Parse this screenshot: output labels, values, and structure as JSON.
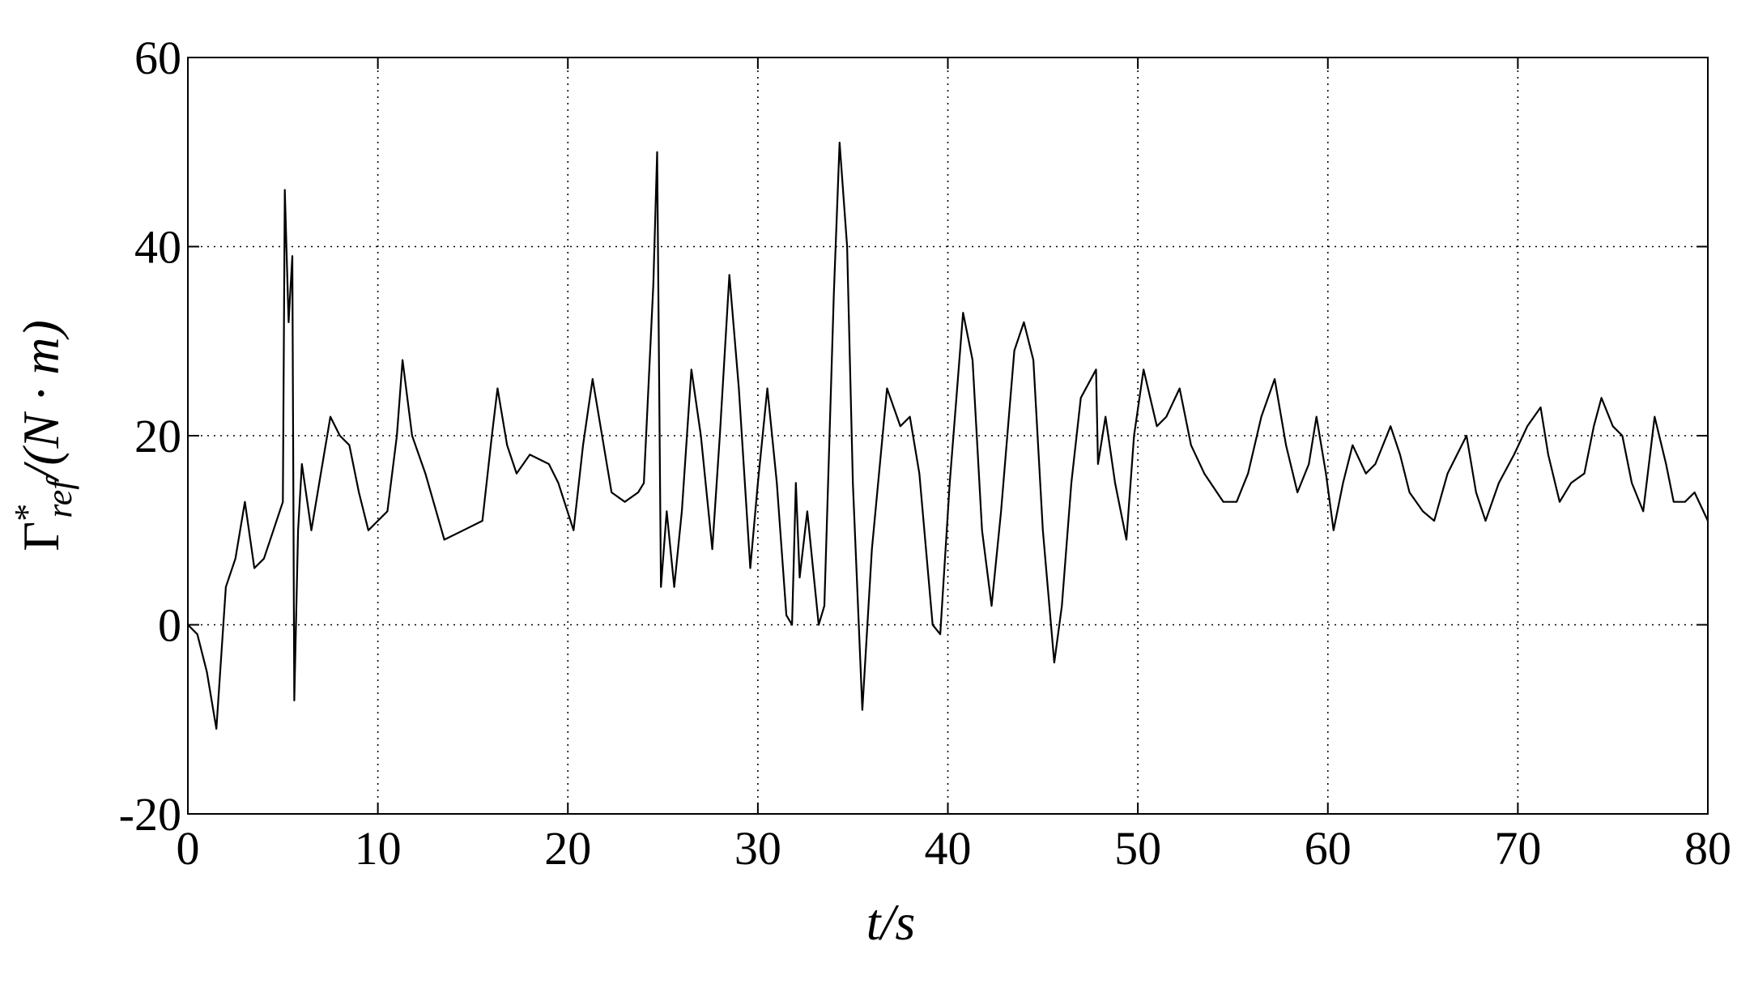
{
  "chart_data": {
    "type": "line",
    "x_label": "t/s",
    "y_label": {
      "symbol": "Γ",
      "sup": "*",
      "sub": "ref",
      "rest": "/(N · m)"
    },
    "color": "#000000",
    "grid": true,
    "xlim": [
      0,
      80
    ],
    "xticks": [
      0,
      10,
      20,
      30,
      40,
      50,
      60,
      70,
      80
    ],
    "ylim": [
      -20,
      60
    ],
    "yticks": [
      -20,
      0,
      20,
      40,
      60
    ],
    "x": [
      0,
      0.5,
      1,
      1.5,
      2,
      2.5,
      3,
      3.5,
      4,
      4.5,
      5,
      5.1,
      5.3,
      5.5,
      5.6,
      5.8,
      6,
      6.5,
      7,
      7.5,
      8,
      8.5,
      9,
      9.5,
      10,
      10.5,
      11,
      11.3,
      11.8,
      12.5,
      13.5,
      14.5,
      15.5,
      16,
      16.3,
      16.8,
      17.3,
      18,
      19,
      19.5,
      20.3,
      20.8,
      21.3,
      21.8,
      22.3,
      23,
      23.7,
      24,
      24.5,
      24.7,
      24.9,
      25.2,
      25.6,
      26,
      26.5,
      27,
      27.6,
      28,
      28.5,
      29,
      29.6,
      30,
      30.5,
      31,
      31.5,
      31.8,
      32,
      32.2,
      32.6,
      33.2,
      33.5,
      34,
      34.3,
      34.7,
      35,
      35.5,
      36,
      36.8,
      37.5,
      38,
      38.5,
      39.2,
      39.6,
      40.1,
      40.8,
      41.3,
      41.8,
      42.3,
      42.8,
      43.5,
      44,
      44.5,
      45,
      45.6,
      46,
      46.5,
      47,
      47.8,
      47.9,
      48.3,
      48.8,
      49.4,
      49.8,
      50.3,
      51,
      51.5,
      52.2,
      52.8,
      53.5,
      54.5,
      55.2,
      55.8,
      56.5,
      57.2,
      57.8,
      58.4,
      59,
      59.4,
      59.9,
      60.3,
      60.8,
      61.3,
      62,
      62.5,
      63.3,
      63.8,
      64.3,
      65,
      65.6,
      66.3,
      67.3,
      67.8,
      68.3,
      69,
      69.8,
      70.5,
      71.2,
      71.6,
      72.2,
      72.8,
      73.5,
      74,
      74.4,
      75,
      75.5,
      76,
      76.6,
      77.2,
      77.8,
      78.2,
      78.8,
      79.3,
      80
    ],
    "values": [
      0,
      -1,
      -5,
      -11,
      4,
      7,
      13,
      6,
      7,
      10,
      13,
      46,
      32,
      39,
      -8,
      10,
      17,
      10,
      16,
      22,
      20,
      19,
      14,
      10,
      11,
      12,
      20,
      28,
      20,
      16,
      9,
      10,
      11,
      20,
      25,
      19,
      16,
      18,
      17,
      15,
      10,
      19,
      26,
      20,
      14,
      13,
      14,
      15,
      36,
      50,
      4,
      12,
      4,
      12,
      27,
      20,
      8,
      20,
      37,
      25,
      6,
      15,
      25,
      15,
      1,
      0,
      15,
      5,
      12,
      0,
      2,
      35,
      51,
      40,
      15,
      -9,
      8,
      25,
      21,
      22,
      16,
      0,
      -1,
      15,
      33,
      28,
      10,
      2,
      12,
      29,
      32,
      28,
      10,
      -4,
      2,
      15,
      24,
      27,
      17,
      22,
      15,
      9,
      20,
      27,
      21,
      22,
      25,
      19,
      16,
      13,
      13,
      16,
      22,
      26,
      19,
      14,
      17,
      22,
      16,
      10,
      15,
      19,
      16,
      17,
      21,
      18,
      14,
      12,
      11,
      16,
      20,
      14,
      11,
      15,
      18,
      21,
      23,
      18,
      13,
      15,
      16,
      21,
      24,
      21,
      20,
      15,
      12,
      22,
      17,
      13,
      13,
      14,
      11
    ]
  }
}
